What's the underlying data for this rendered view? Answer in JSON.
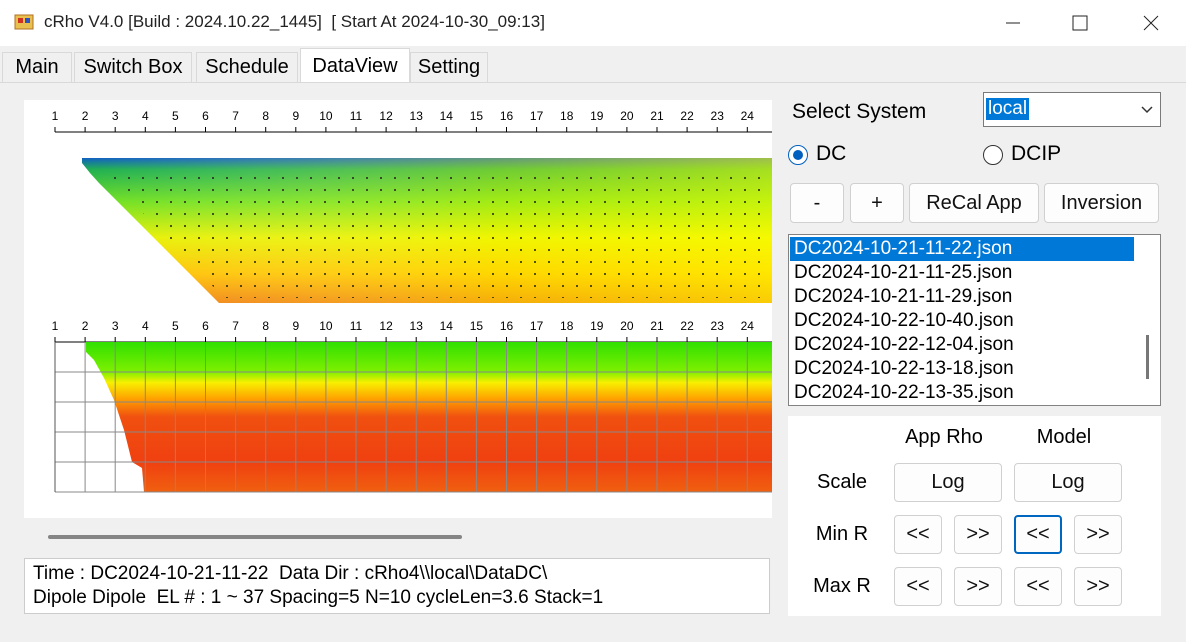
{
  "window": {
    "title": "cRho V4.0 [Build : 2024.10.22_1445]  [ Start At 2024-10-30_09:13]"
  },
  "tabs": [
    "Main",
    "Switch Box",
    "Schedule",
    "DataView",
    "Setting"
  ],
  "dataview": {
    "electrodes": [
      1,
      2,
      3,
      4,
      5,
      6,
      7,
      8,
      9,
      10,
      11,
      12,
      13,
      14,
      15,
      16,
      17,
      18,
      19,
      20,
      21,
      22,
      23,
      24
    ],
    "select_system": {
      "label": "Select System",
      "value": "local"
    },
    "modes": [
      "DC",
      "DCIP"
    ],
    "buttons": [
      "-",
      "+",
      "ReCal App",
      "Inversion"
    ],
    "files": [
      "DC2024-10-21-11-22.json",
      "DC2024-10-21-11-25.json",
      "DC2024-10-21-11-29.json",
      "DC2024-10-22-10-40.json",
      "DC2024-10-22-12-04.json",
      "DC2024-10-22-13-18.json",
      "DC2024-10-22-13-35.json"
    ],
    "scale_panel": {
      "columns": [
        "App Rho",
        "Model"
      ],
      "rows": [
        {
          "label": "Scale",
          "buttons": [
            "Log",
            "Log"
          ]
        },
        {
          "label": "Min R",
          "buttons": [
            "<<",
            ">>",
            "<<",
            ">>"
          ]
        },
        {
          "label": "Max R",
          "buttons": [
            "<<",
            ">>",
            "<<",
            ">>"
          ]
        }
      ]
    },
    "status": [
      "Time : DC2024-10-21-11-22  Data Dir : cRho4\\\\local\\DataDC\\",
      "Dipole Dipole  EL # : 1 ~ 37 Spacing=5 N=10 cycleLen=3.6 Stack=1"
    ]
  }
}
